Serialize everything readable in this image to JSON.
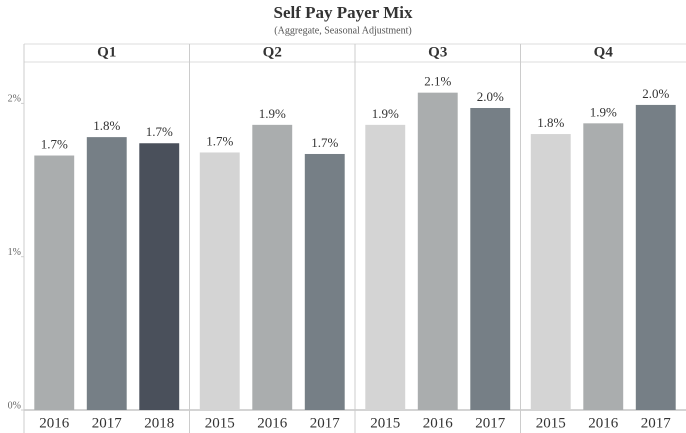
{
  "chart_data": {
    "type": "bar",
    "title": "Self Pay Payer Mix",
    "subtitle": "(Aggregate, Seasonal Adjustment)",
    "ylim": [
      0,
      2.27
    ],
    "yticks": [
      {
        "value": 0,
        "label": "0%"
      },
      {
        "value": 1,
        "label": "1%"
      },
      {
        "value": 2,
        "label": "2%"
      }
    ],
    "grid": false,
    "panels": [
      {
        "title": "Q1",
        "categories": [
          "2016",
          "2017",
          "2018"
        ],
        "values": [
          1.66,
          1.78,
          1.74
        ],
        "value_labels": [
          "1.7%",
          "1.8%",
          "1.7%"
        ],
        "colors": [
          "#aaadae",
          "#767f86",
          "#4a505b"
        ]
      },
      {
        "title": "Q2",
        "categories": [
          "2015",
          "2016",
          "2017"
        ],
        "values": [
          1.68,
          1.86,
          1.67
        ],
        "value_labels": [
          "1.7%",
          "1.9%",
          "1.7%"
        ],
        "colors": [
          "#d4d4d4",
          "#aaadae",
          "#767f86"
        ]
      },
      {
        "title": "Q3",
        "categories": [
          "2015",
          "2016",
          "2017"
        ],
        "values": [
          1.86,
          2.07,
          1.97
        ],
        "value_labels": [
          "1.9%",
          "2.1%",
          "2.0%"
        ],
        "colors": [
          "#d4d4d4",
          "#aaadae",
          "#767f86"
        ]
      },
      {
        "title": "Q4",
        "categories": [
          "2015",
          "2016",
          "2017"
        ],
        "values": [
          1.8,
          1.87,
          1.99
        ],
        "value_labels": [
          "1.8%",
          "1.9%",
          "2.0%"
        ],
        "colors": [
          "#d4d4d4",
          "#aaadae",
          "#767f86"
        ]
      }
    ]
  }
}
